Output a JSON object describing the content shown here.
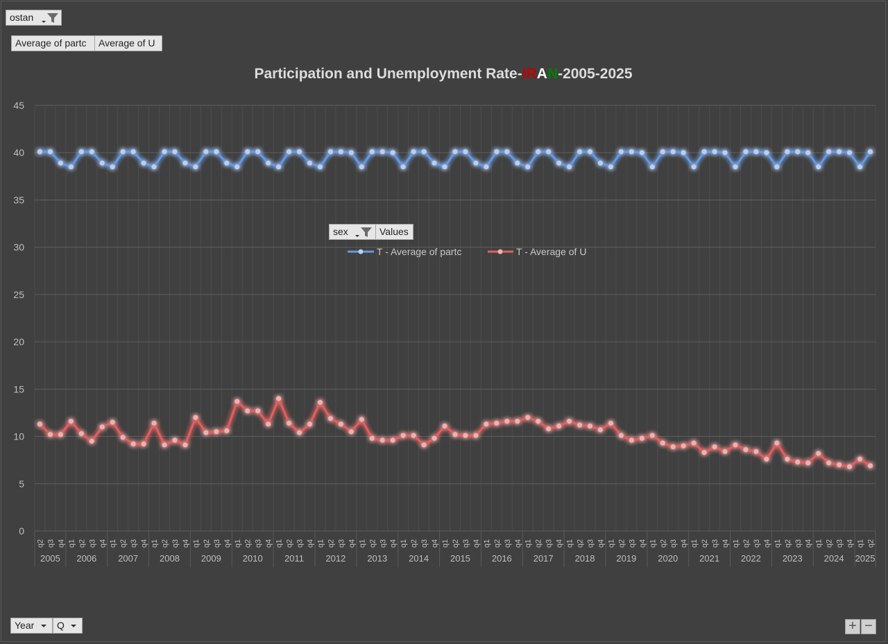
{
  "filters": {
    "ostan_label": "ostan",
    "values_fields": [
      "Average of partc",
      "Average of U"
    ],
    "legend_field": "sex",
    "values_label": "Values",
    "axis_fields": [
      "Year",
      "Q"
    ]
  },
  "zoom": {
    "plus": "+",
    "minus": "−"
  },
  "colors": {
    "background": "#404040",
    "partc": "#6699e0",
    "u": "#e06060",
    "iran_red": "#c00000",
    "iran_white": "#ffffff",
    "iran_green": "#008000"
  },
  "chart_data": {
    "type": "line",
    "title": "Participation and Unemployment Rate-IRAN-2005-2025",
    "title_parts": [
      "Participation and Unemployment Rate-",
      "IR",
      "A",
      "N",
      "-2005-2025"
    ],
    "xlabel": "",
    "ylabel": "",
    "ylim": [
      0,
      45
    ],
    "yticks": [
      0,
      5,
      10,
      15,
      20,
      25,
      30,
      35,
      40,
      45
    ],
    "grid": true,
    "legend_position": "center",
    "quarters": [
      "q2",
      "q3",
      "q4",
      "q1",
      "q2",
      "q3",
      "q4",
      "q1",
      "q2",
      "q3",
      "q4",
      "q1",
      "q2",
      "q3",
      "q4",
      "q1",
      "q2",
      "q3",
      "q4",
      "q1",
      "q2",
      "q3",
      "q4",
      "q1",
      "q2",
      "q3",
      "q4",
      "q1",
      "q2",
      "q3",
      "q4",
      "q1",
      "q2",
      "q3",
      "q4",
      "q1",
      "q2",
      "q3",
      "q4",
      "q1",
      "q2",
      "q3",
      "q4",
      "q1",
      "q2",
      "q3",
      "q4",
      "q1",
      "q2",
      "q3",
      "q4",
      "q1",
      "q2",
      "q3",
      "q4",
      "q1",
      "q2",
      "q3",
      "q4",
      "q1",
      "q2",
      "q3",
      "q4",
      "q1",
      "q2",
      "q3",
      "q4",
      "q1",
      "q2",
      "q3",
      "q4",
      "q1",
      "q2",
      "q3",
      "q4",
      "q1",
      "q2",
      "q3",
      "q4",
      "q1",
      "q2"
    ],
    "years": [
      {
        "label": "2005",
        "start": 0,
        "end": 2
      },
      {
        "label": "2006",
        "start": 3,
        "end": 6
      },
      {
        "label": "2007",
        "start": 7,
        "end": 10
      },
      {
        "label": "2008",
        "start": 11,
        "end": 14
      },
      {
        "label": "2009",
        "start": 15,
        "end": 18
      },
      {
        "label": "2010",
        "start": 19,
        "end": 22
      },
      {
        "label": "2011",
        "start": 23,
        "end": 26
      },
      {
        "label": "2012",
        "start": 27,
        "end": 30
      },
      {
        "label": "2013",
        "start": 31,
        "end": 34
      },
      {
        "label": "2014",
        "start": 35,
        "end": 38
      },
      {
        "label": "2015",
        "start": 39,
        "end": 42
      },
      {
        "label": "2016",
        "start": 43,
        "end": 46
      },
      {
        "label": "2017",
        "start": 47,
        "end": 50
      },
      {
        "label": "2018",
        "start": 51,
        "end": 54
      },
      {
        "label": "2019",
        "start": 55,
        "end": 58
      },
      {
        "label": "2020",
        "start": 59,
        "end": 62
      },
      {
        "label": "2021",
        "start": 63,
        "end": 66
      },
      {
        "label": "2022",
        "start": 67,
        "end": 70
      },
      {
        "label": "2023",
        "start": 71,
        "end": 74
      },
      {
        "label": "2024",
        "start": 75,
        "end": 78
      },
      {
        "label": "2025",
        "start": 79,
        "end": 80
      }
    ],
    "series": [
      {
        "name": "T - Average of partc",
        "color": "#6699e0",
        "values": [
          40.1,
          40.1,
          38.9,
          38.5,
          40.1,
          40.1,
          38.9,
          38.5,
          40.1,
          40.1,
          38.9,
          38.5,
          40.1,
          40.1,
          38.9,
          38.5,
          40.1,
          40.1,
          38.9,
          38.5,
          40.1,
          40.1,
          38.9,
          38.5,
          40.1,
          40.1,
          38.9,
          38.5,
          40.1,
          40.1,
          40.0,
          38.5,
          40.1,
          40.1,
          40.0,
          38.5,
          40.1,
          40.1,
          38.9,
          38.5,
          40.1,
          40.1,
          38.9,
          38.5,
          40.1,
          40.1,
          38.9,
          38.5,
          40.1,
          40.1,
          38.9,
          38.5,
          40.1,
          40.1,
          38.9,
          38.5,
          40.1,
          40.1,
          40.0,
          38.5,
          40.1,
          40.1,
          40.0,
          38.5,
          40.1,
          40.1,
          40.0,
          38.5,
          40.1,
          40.1,
          40.0,
          38.5,
          40.1,
          40.1,
          40.0,
          38.5,
          40.1,
          40.1,
          40.0,
          38.5,
          40.1
        ]
      },
      {
        "name": "T - Average of U",
        "color": "#e06060",
        "values": [
          11.3,
          10.2,
          10.2,
          11.6,
          10.3,
          9.5,
          11.0,
          11.5,
          9.9,
          9.2,
          9.2,
          11.4,
          9.1,
          9.6,
          9.1,
          12.0,
          10.4,
          10.5,
          10.6,
          13.7,
          12.7,
          12.7,
          11.3,
          14.0,
          11.4,
          10.4,
          11.3,
          13.6,
          11.9,
          11.3,
          10.5,
          11.8,
          9.8,
          9.6,
          9.6,
          10.1,
          10.1,
          9.1,
          9.8,
          11.1,
          10.2,
          10.1,
          10.1,
          11.3,
          11.4,
          11.6,
          11.6,
          12.0,
          11.6,
          10.8,
          11.1,
          11.6,
          11.2,
          11.1,
          10.7,
          11.4,
          10.1,
          9.6,
          9.8,
          10.1,
          9.3,
          8.9,
          9.0,
          9.3,
          8.3,
          8.9,
          8.4,
          9.1,
          8.6,
          8.4,
          7.6,
          9.3,
          7.6,
          7.3,
          7.2,
          8.2,
          7.2,
          7.0,
          6.8,
          7.6,
          6.9
        ]
      }
    ]
  }
}
